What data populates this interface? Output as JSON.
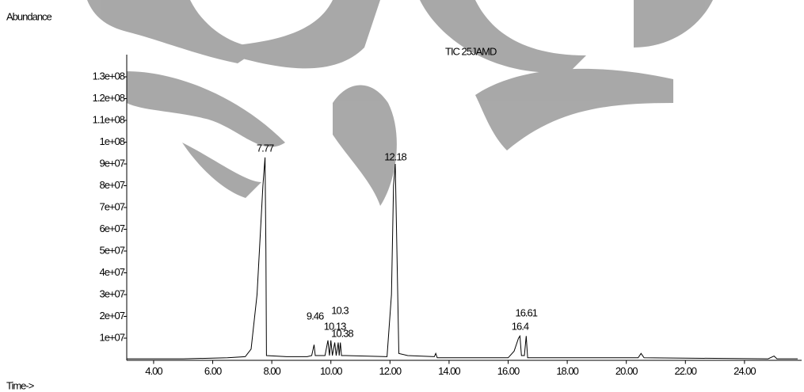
{
  "chart_data": {
    "type": "line",
    "y_label": "Abundance",
    "x_label": "Time->",
    "title": "TIC 25JAMD",
    "color": "#000000",
    "xlim": [
      3.09,
      25.88
    ],
    "ylim": [
      0,
      140000000
    ],
    "xticks": [
      {
        "value": 4,
        "label": "4.00"
      },
      {
        "value": 6,
        "label": "6.00"
      },
      {
        "value": 8,
        "label": "8.00"
      },
      {
        "value": 10,
        "label": "10.00"
      },
      {
        "value": 12,
        "label": "12.00"
      },
      {
        "value": 14,
        "label": "14.00"
      },
      {
        "value": 16,
        "label": "16.00"
      },
      {
        "value": 18,
        "label": "18.00"
      },
      {
        "value": 20,
        "label": "20.00"
      },
      {
        "value": 22,
        "label": "22.00"
      },
      {
        "value": 24,
        "label": "24.00"
      }
    ],
    "yticks": [
      {
        "value": 10000000,
        "label": "1e+07"
      },
      {
        "value": 20000000,
        "label": "2e+07"
      },
      {
        "value": 30000000,
        "label": "3e+07"
      },
      {
        "value": 40000000,
        "label": "4e+07"
      },
      {
        "value": 50000000,
        "label": "5e+07"
      },
      {
        "value": 60000000,
        "label": "6e+07"
      },
      {
        "value": 70000000,
        "label": "7e+07"
      },
      {
        "value": 80000000,
        "label": "8e+07"
      },
      {
        "value": 90000000,
        "label": "9e+07"
      },
      {
        "value": 100000000,
        "label": "1e+08"
      },
      {
        "value": 110000000,
        "label": "1.1e+08"
      },
      {
        "value": 120000000,
        "label": "1.2e+08"
      },
      {
        "value": 130000000,
        "label": "1.3e+08"
      }
    ],
    "x": [
      3.1,
      5.0,
      6.5,
      7.1,
      7.3,
      7.5,
      7.7,
      7.77,
      7.8,
      7.82,
      8.5,
      9.2,
      9.35,
      9.43,
      9.47,
      9.8,
      9.9,
      9.95,
      10.0,
      10.05,
      10.13,
      10.18,
      10.25,
      10.28,
      10.32,
      10.36,
      10.5,
      11.9,
      12.05,
      12.12,
      12.18,
      12.25,
      12.3,
      12.6,
      13.5,
      13.55,
      13.6,
      16.0,
      16.2,
      16.35,
      16.4,
      16.45,
      16.55,
      16.61,
      16.66,
      20.4,
      20.5,
      20.6,
      24.8,
      25.0,
      25.1,
      25.8
    ],
    "values": [
      500000,
      500000,
      1000000,
      1500000,
      5000000,
      30000000,
      80000000,
      93000000,
      50000000,
      2000000,
      1500000,
      1500000,
      2000000,
      7000000,
      2000000,
      2000000,
      9000000,
      2000000,
      9000000,
      2000000,
      8000000,
      2000000,
      8000000,
      2000000,
      8000000,
      2000000,
      2000000,
      1500000,
      30000000,
      80000000,
      90000000,
      40000000,
      3000000,
      2000000,
      1500000,
      3000000,
      1000000,
      1000000,
      4000000,
      10000000,
      11000000,
      2000000,
      2000000,
      11000000,
      1000000,
      1000000,
      3000000,
      1000000,
      500000,
      1800000,
      500000,
      500000
    ],
    "peak_labels": [
      7.77,
      12.18,
      9.46,
      10.3,
      10.13,
      10.38,
      16.61,
      16.4
    ]
  }
}
